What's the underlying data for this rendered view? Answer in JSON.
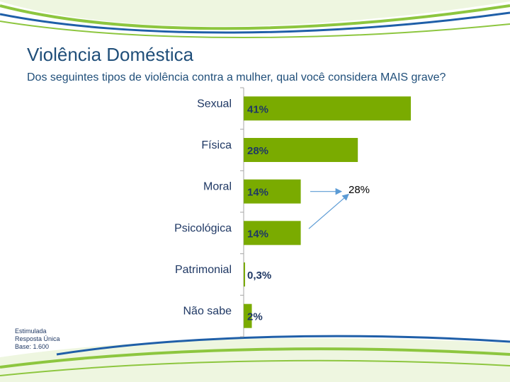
{
  "header": {
    "title": "Violência Doméstica",
    "subtitle": "Dos seguintes tipos de violência contra a mulher, qual você considera MAIS grave?"
  },
  "chart_data": {
    "type": "bar",
    "orientation": "horizontal",
    "title": "",
    "xlabel": "",
    "ylabel": "",
    "categories": [
      "Sexual",
      "Física",
      "Moral",
      "Psicológica",
      "Patrimonial",
      "Não sabe"
    ],
    "values": [
      41,
      28,
      14,
      14,
      0.3,
      2
    ],
    "data_labels": [
      "41%",
      "28%",
      "14%",
      "14%",
      "0,3%",
      "2%"
    ],
    "xlim": [
      0,
      45
    ],
    "grid": false,
    "legend": "none",
    "bar_color": "#7aab00",
    "annotation": {
      "text": "28%",
      "arrows_from": [
        "Moral",
        "Psicológica"
      ]
    }
  },
  "notes": [
    "Estimulada",
    "Resposta Única",
    "Base: 1.600"
  ],
  "colors": {
    "title": "#1f4e79",
    "bar": "#7aab00",
    "data_label": "#1f3864",
    "category_label": "#1f3864",
    "arrow": "#5b9bd5",
    "swoosh_green": "#8dc63f",
    "swoosh_blue": "#1f5fa8"
  }
}
